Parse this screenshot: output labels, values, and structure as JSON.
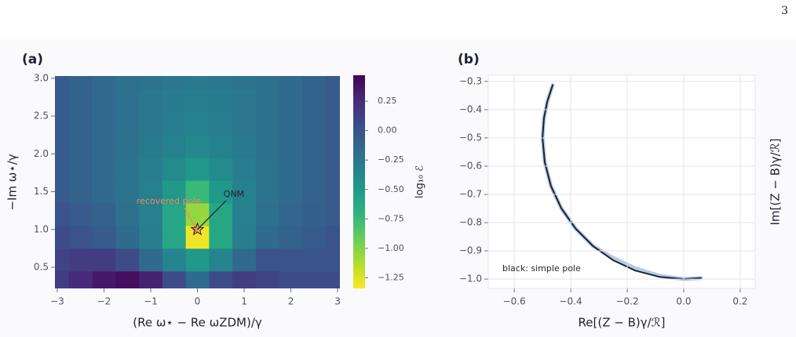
{
  "page_number": "3",
  "chart_data": [
    {
      "type": "heatmap",
      "title": "(a)",
      "x_label": "(Re ω⋆ − Re ωZDM)/γ",
      "y_label": "−Im ω⋆/γ",
      "x": [
        -3,
        -2.5,
        -2,
        -1.5,
        -1,
        -0.5,
        0,
        0.5,
        1,
        1.5,
        2,
        2.5,
        3
      ],
      "y": [
        0.3,
        0.6,
        0.9,
        1.2,
        1.5,
        1.8,
        2.1,
        2.4,
        2.7,
        3.0
      ],
      "z": [
        [
          0.15,
          0.25,
          0.35,
          0.4,
          0.3,
          0.05,
          -0.15,
          0.05,
          0.15,
          0.1,
          0.05,
          0.05,
          0.05
        ],
        [
          0.1,
          0.15,
          0.15,
          0.05,
          -0.15,
          -0.35,
          -0.5,
          -0.35,
          -0.15,
          0,
          0,
          0,
          0
        ],
        [
          0.05,
          0,
          -0.05,
          -0.15,
          -0.3,
          -0.6,
          -1.3,
          -0.6,
          -0.3,
          -0.15,
          -0.1,
          -0.05,
          0
        ],
        [
          0,
          -0.05,
          -0.1,
          -0.2,
          -0.32,
          -0.6,
          -1.05,
          -0.6,
          -0.32,
          -0.2,
          -0.12,
          -0.08,
          -0.05
        ],
        [
          -0.05,
          -0.1,
          -0.15,
          -0.22,
          -0.32,
          -0.5,
          -0.75,
          -0.5,
          -0.32,
          -0.22,
          -0.15,
          -0.1,
          -0.05
        ],
        [
          -0.05,
          -0.1,
          -0.15,
          -0.22,
          -0.3,
          -0.4,
          -0.5,
          -0.4,
          -0.3,
          -0.22,
          -0.15,
          -0.1,
          -0.05
        ],
        [
          -0.05,
          -0.1,
          -0.15,
          -0.2,
          -0.27,
          -0.33,
          -0.38,
          -0.33,
          -0.27,
          -0.2,
          -0.15,
          -0.1,
          -0.05
        ],
        [
          -0.05,
          -0.1,
          -0.15,
          -0.2,
          -0.25,
          -0.3,
          -0.33,
          -0.3,
          -0.25,
          -0.2,
          -0.15,
          -0.1,
          -0.05
        ],
        [
          -0.05,
          -0.1,
          -0.15,
          -0.2,
          -0.25,
          -0.28,
          -0.3,
          -0.28,
          -0.25,
          -0.2,
          -0.15,
          -0.1,
          -0.05
        ],
        [
          -0.05,
          -0.1,
          -0.15,
          -0.2,
          -0.22,
          -0.25,
          -0.27,
          -0.25,
          -0.22,
          -0.2,
          -0.15,
          -0.1,
          -0.05
        ]
      ],
      "colormap": "viridis_r",
      "xlim": [
        -3.05,
        3.05
      ],
      "ylim": [
        0.22,
        3.03
      ],
      "xticks": [
        {
          "value": -3,
          "label": "−3"
        },
        {
          "value": -2,
          "label": "−2"
        },
        {
          "value": -1,
          "label": "−1"
        },
        0,
        1,
        2,
        3
      ],
      "yticks": [
        0.5,
        {
          "value": 1,
          "label": "1.0"
        },
        1.5,
        {
          "value": 2,
          "label": "2.0"
        },
        2.5,
        {
          "value": 3,
          "label": "3.0"
        }
      ],
      "grid": false,
      "markers": [
        {
          "name": "recovered pole",
          "x": -0.03,
          "y": 1.0,
          "color": "#f08a5d"
        },
        {
          "name": "QNM",
          "x": 0,
          "y": 1.0,
          "color": "none"
        }
      ],
      "colorbar": {
        "label": "log₁₀ ℰ",
        "vlim": [
          -1.34,
          0.47
        ],
        "ticks": [
          0.25,
          {
            "value": 0,
            "label": "0.00"
          },
          {
            "value": -0.25,
            "label": "−0.25"
          },
          {
            "value": -0.5,
            "label": "−0.50"
          },
          {
            "value": -0.75,
            "label": "−0.75"
          },
          {
            "value": -1,
            "label": "−1.00"
          },
          {
            "value": -1.25,
            "label": "−1.25"
          }
        ]
      }
    },
    {
      "type": "line",
      "title": "(b)",
      "x_label": "Re[(Z − B)γ/ℛ]",
      "y_label": "Im[(Z − B)γ/ℛ]",
      "x": [
        -0.464,
        -0.483,
        -0.495,
        -0.5,
        -0.492,
        -0.47,
        -0.433,
        -0.383,
        -0.321,
        -0.25,
        -0.171,
        -0.087,
        0,
        0.061
      ],
      "series": [
        {
          "color": "#a9c1e0",
          "values": [
            -0.313,
            -0.371,
            -0.43,
            -0.5,
            -0.587,
            -0.671,
            -0.75,
            -0.821,
            -0.883,
            -0.925,
            -0.962,
            -0.988,
            -1.0,
            -0.996
          ]
        },
        {
          "color": "#1a2333",
          "values": [
            -0.313,
            -0.371,
            -0.43,
            -0.5,
            -0.587,
            -0.671,
            -0.75,
            -0.821,
            -0.883,
            -0.933,
            -0.97,
            -0.992,
            -1.0,
            -0.996
          ]
        }
      ],
      "annotation": "black: simple pole",
      "xlim": [
        -0.692,
        0.253
      ],
      "ylim": [
        -1.033,
        -0.278
      ],
      "xticks": [
        {
          "value": -0.6,
          "label": "−0.6"
        },
        {
          "value": -0.4,
          "label": "−0.4"
        },
        {
          "value": -0.2,
          "label": "−0.2"
        },
        {
          "value": 0,
          "label": "0.0"
        },
        0.2
      ],
      "yticks": [
        {
          "value": -0.3,
          "label": "−0.3"
        },
        {
          "value": -0.4,
          "label": "−0.4"
        },
        {
          "value": -0.5,
          "label": "−0.5"
        },
        {
          "value": -0.6,
          "label": "−0.6"
        },
        {
          "value": -0.7,
          "label": "−0.7"
        },
        {
          "value": -0.8,
          "label": "−0.8"
        },
        {
          "value": -0.9,
          "label": "−0.9"
        },
        {
          "value": -1,
          "label": "−1.0"
        }
      ],
      "grid": true
    }
  ]
}
